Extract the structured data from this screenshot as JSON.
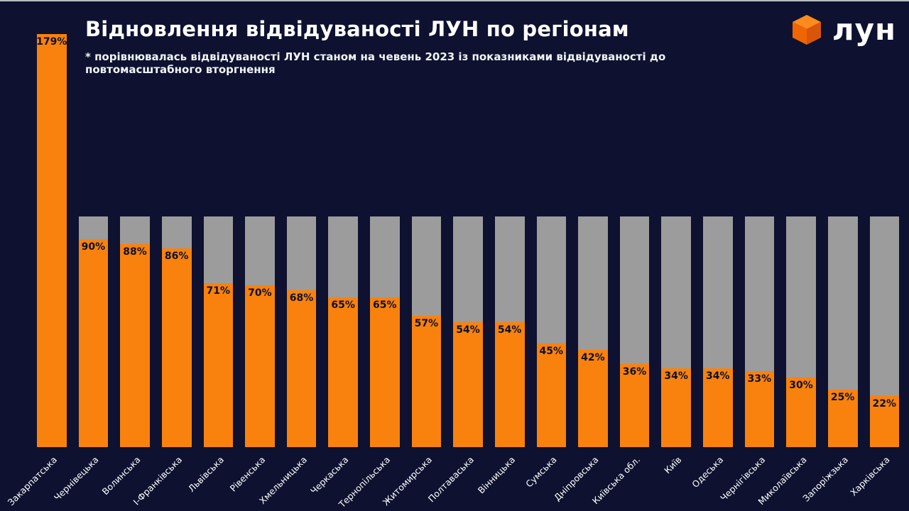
{
  "colors": {
    "background": "#0e1230",
    "bar": "#f8820d",
    "track": "#9c9c9c",
    "value_label": "#0d1128",
    "text": "#ffffff",
    "logo_orange_top": "#ff8a1e",
    "logo_orange_left": "#ef6500",
    "logo_orange_right": "#d9550a"
  },
  "header": {
    "title": "Відновлення відвідуваності ЛУН по регіонам",
    "subtitle": "* порівнювалась відвідуваності ЛУН станом на чевень 2023 із показниками відвідуваності до повтомасштабного вторгнення"
  },
  "logo": {
    "text": "лун"
  },
  "chart_data": {
    "type": "bar",
    "title": "Відновлення відвідуваності ЛУН по регіонам",
    "categories": [
      "Закарпатська",
      "Чернівецька",
      "Волинська",
      "І-Франківська",
      "Львівська",
      "Рівенська",
      "Хмельницька",
      "Черкаська",
      "Тернопільська",
      "Житомирська",
      "Полтаваська",
      "Вінницька",
      "Сумська",
      "Дніпровська",
      "Київська обл.",
      "Київ",
      "Одеська",
      "Чернігівська",
      "Миколаївська",
      "Запоріжзька",
      "Харківська"
    ],
    "values": [
      179,
      90,
      88,
      86,
      71,
      70,
      68,
      65,
      65,
      57,
      54,
      54,
      45,
      42,
      36,
      34,
      34,
      33,
      30,
      25,
      22
    ],
    "value_suffix": "%",
    "baseline": 100,
    "ylim": [
      0,
      179
    ],
    "xlabel": "",
    "ylabel": "",
    "grid": false,
    "legend": false,
    "note": "gray track = 100% pre-invasion level, orange fill = current share"
  }
}
